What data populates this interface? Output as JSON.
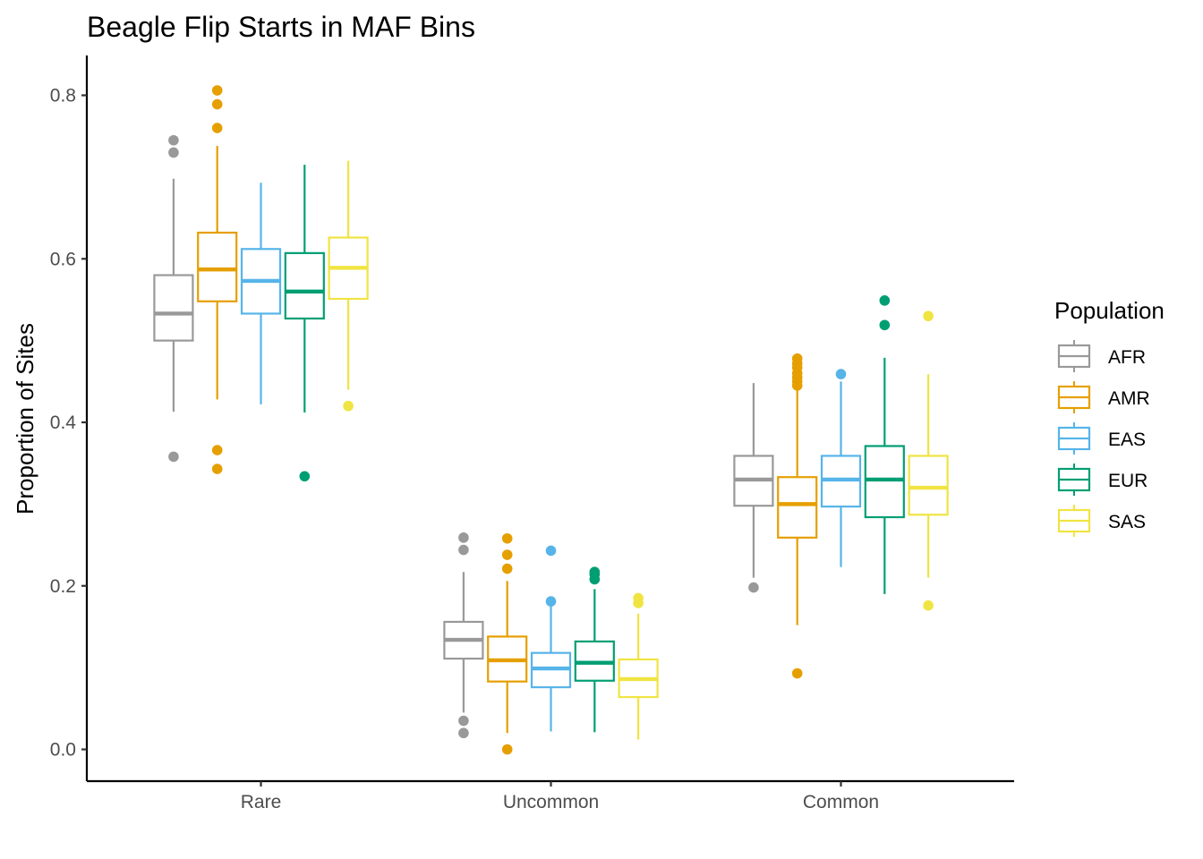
{
  "chart_data": {
    "type": "boxplot",
    "title": "Beagle Flip Starts in MAF Bins",
    "xlabel": "",
    "ylabel": "Proportion of Sites",
    "ylim": [
      -0.04,
      0.845
    ],
    "yticks": [
      "0.0",
      "0.2",
      "0.4",
      "0.6",
      "0.8"
    ],
    "categories": [
      "Rare",
      "Uncommon",
      "Common"
    ],
    "legend": {
      "title": "Population",
      "position": "right"
    },
    "grid": false,
    "series": [
      {
        "name": "AFR",
        "color": "#999999",
        "boxes": [
          {
            "whisker_low": 0.413,
            "q1": 0.5,
            "median": 0.533,
            "q3": 0.58,
            "whisker_high": 0.698,
            "outliers": [
              0.745,
              0.73,
              0.358
            ]
          },
          {
            "whisker_low": 0.045,
            "q1": 0.111,
            "median": 0.134,
            "q3": 0.156,
            "whisker_high": 0.217,
            "outliers": [
              0.259,
              0.244,
              0.035,
              0.02
            ]
          },
          {
            "whisker_low": 0.21,
            "q1": 0.298,
            "median": 0.33,
            "q3": 0.359,
            "whisker_high": 0.448,
            "outliers": [
              0.198
            ]
          }
        ]
      },
      {
        "name": "AMR",
        "color": "#E69F00",
        "boxes": [
          {
            "whisker_low": 0.428,
            "q1": 0.548,
            "median": 0.587,
            "q3": 0.632,
            "whisker_high": 0.738,
            "outliers": [
              0.806,
              0.789,
              0.76,
              0.366,
              0.343
            ]
          },
          {
            "whisker_low": 0.02,
            "q1": 0.083,
            "median": 0.109,
            "q3": 0.138,
            "whisker_high": 0.206,
            "outliers": [
              0.258,
              0.238,
              0.221,
              0.0
            ]
          },
          {
            "whisker_low": 0.152,
            "q1": 0.259,
            "median": 0.3,
            "q3": 0.333,
            "whisker_high": 0.44,
            "outliers": [
              0.478,
              0.472,
              0.467,
              0.46,
              0.455,
              0.45,
              0.445,
              0.093
            ]
          }
        ]
      },
      {
        "name": "EAS",
        "color": "#56B4E9",
        "boxes": [
          {
            "whisker_low": 0.422,
            "q1": 0.533,
            "median": 0.573,
            "q3": 0.612,
            "whisker_high": 0.693,
            "outliers": []
          },
          {
            "whisker_low": 0.022,
            "q1": 0.076,
            "median": 0.099,
            "q3": 0.118,
            "whisker_high": 0.175,
            "outliers": [
              0.243,
              0.181
            ]
          },
          {
            "whisker_low": 0.223,
            "q1": 0.297,
            "median": 0.33,
            "q3": 0.359,
            "whisker_high": 0.45,
            "outliers": [
              0.459
            ]
          }
        ]
      },
      {
        "name": "EUR",
        "color": "#009E73",
        "boxes": [
          {
            "whisker_low": 0.412,
            "q1": 0.527,
            "median": 0.56,
            "q3": 0.607,
            "whisker_high": 0.715,
            "outliers": [
              0.334
            ]
          },
          {
            "whisker_low": 0.021,
            "q1": 0.084,
            "median": 0.106,
            "q3": 0.132,
            "whisker_high": 0.196,
            "outliers": [
              0.217,
              0.214,
              0.208
            ]
          },
          {
            "whisker_low": 0.19,
            "q1": 0.284,
            "median": 0.33,
            "q3": 0.371,
            "whisker_high": 0.479,
            "outliers": [
              0.549,
              0.519
            ]
          }
        ]
      },
      {
        "name": "SAS",
        "color": "#F0E442",
        "boxes": [
          {
            "whisker_low": 0.44,
            "q1": 0.551,
            "median": 0.589,
            "q3": 0.626,
            "whisker_high": 0.72,
            "outliers": [
              0.42
            ]
          },
          {
            "whisker_low": 0.012,
            "q1": 0.064,
            "median": 0.086,
            "q3": 0.11,
            "whisker_high": 0.166,
            "outliers": [
              0.185,
              0.179
            ]
          },
          {
            "whisker_low": 0.21,
            "q1": 0.287,
            "median": 0.32,
            "q3": 0.359,
            "whisker_high": 0.459,
            "outliers": [
              0.53,
              0.176
            ]
          }
        ]
      }
    ]
  }
}
